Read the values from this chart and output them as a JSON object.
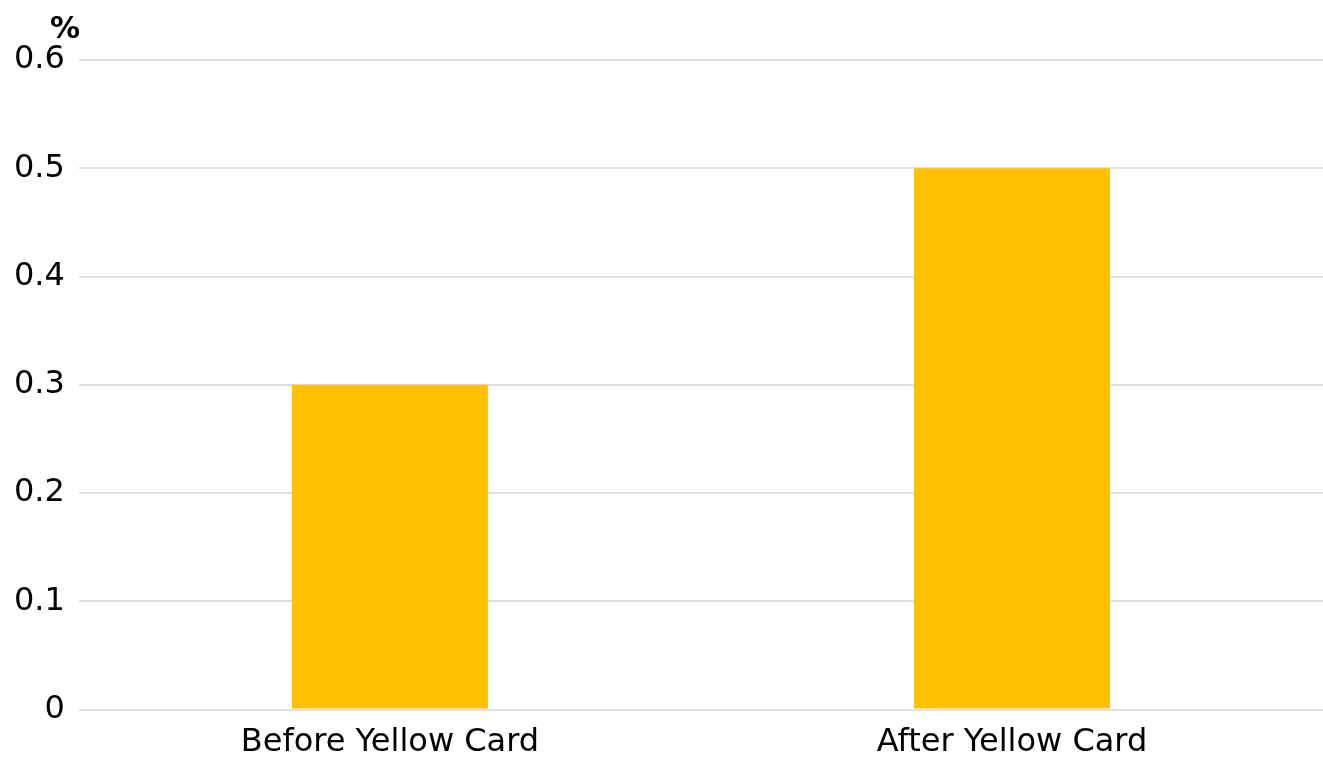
{
  "chart_data": {
    "type": "bar",
    "ylabel": "%",
    "categories": [
      "Before Yellow Card",
      "After Yellow Card"
    ],
    "values": [
      0.3,
      0.5
    ],
    "color": "#ffc000",
    "ylim": [
      0,
      0.6
    ],
    "yticks": [
      0,
      0.1,
      0.2,
      0.3,
      0.4,
      0.5,
      0.6
    ],
    "grid": "y"
  }
}
